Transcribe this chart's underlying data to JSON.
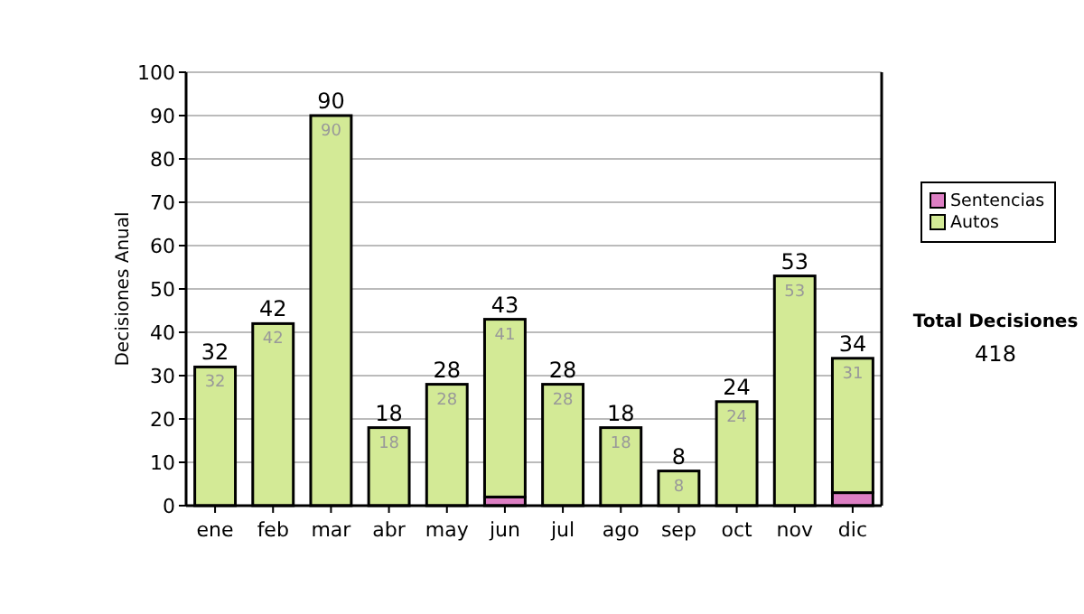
{
  "chart_data": {
    "type": "bar",
    "stacked": true,
    "ylabel": "Decisiones Anual",
    "categories": [
      "ene",
      "feb",
      "mar",
      "abr",
      "may",
      "jun",
      "jul",
      "ago",
      "sep",
      "oct",
      "nov",
      "dic"
    ],
    "series": [
      {
        "name": "Sentencias",
        "color": "#dd7fc4",
        "values": [
          0,
          0,
          0,
          0,
          0,
          2,
          0,
          0,
          0,
          0,
          0,
          3
        ]
      },
      {
        "name": "Autos",
        "color": "#d3ea96",
        "values": [
          32,
          42,
          90,
          18,
          28,
          41,
          28,
          18,
          8,
          24,
          53,
          31
        ],
        "value_labels": [
          "32",
          "42",
          "90",
          "18",
          "28",
          "41",
          "28",
          "18",
          "8",
          "24",
          "53",
          "31"
        ]
      }
    ],
    "totals": [
      "32",
      "42",
      "90",
      "18",
      "28",
      "43",
      "28",
      "18",
      "8",
      "24",
      "53",
      "34"
    ],
    "ylim": [
      0,
      100
    ],
    "yticks": [
      0,
      10,
      20,
      30,
      40,
      50,
      60,
      70,
      80,
      90,
      100
    ],
    "grid": "y",
    "legend": "right",
    "annotations": [
      "Total Decisiones",
      "418"
    ]
  }
}
